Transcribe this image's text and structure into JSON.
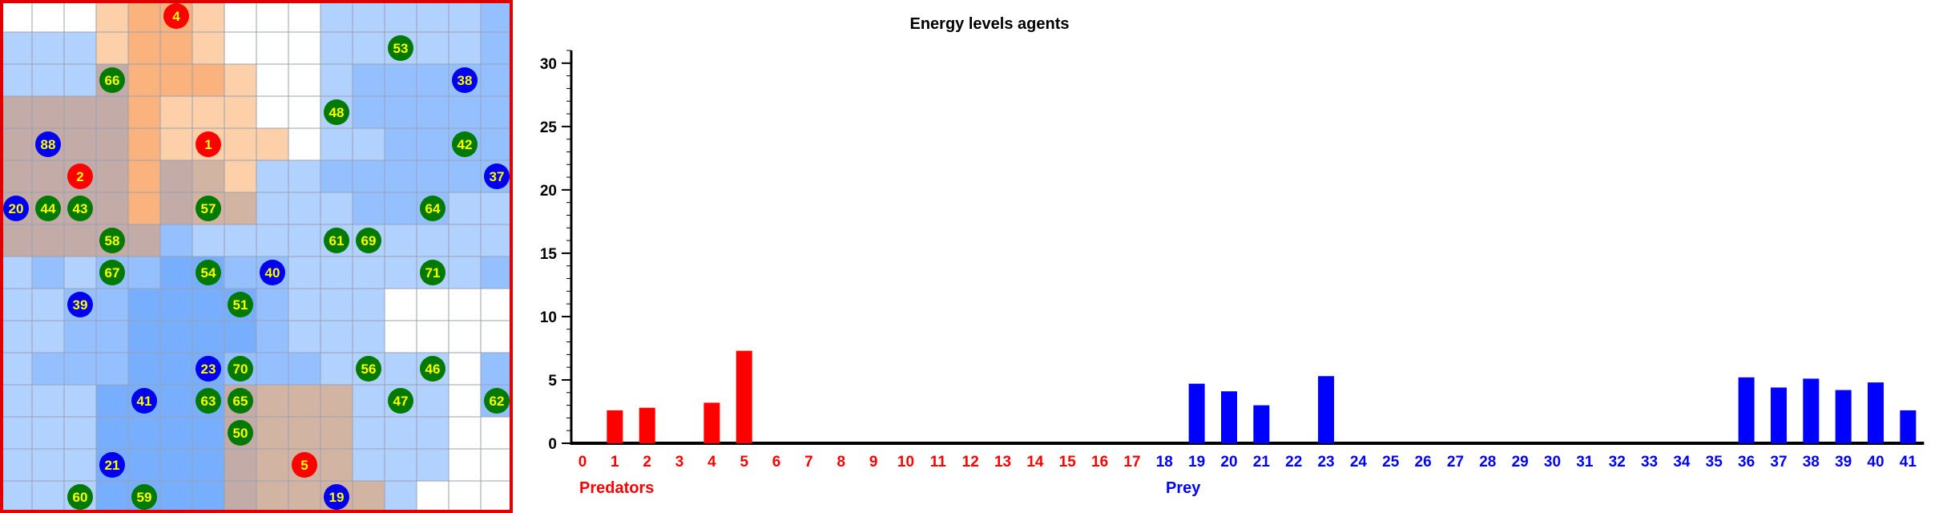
{
  "grid": {
    "rows": 16,
    "cols": 16,
    "border_color": "#e00000",
    "cell_colors": {
      "w": "#ffffff",
      "o": "#fdd0aa",
      "O": "#fbb37d",
      "b": "#b1d2ff",
      "B": "#94c0ff",
      "D": "#78aefe",
      "x": "#c3aba7",
      "p": "#d2b4a2",
      "v": "#cbb7c3"
    },
    "cell_map": [
      "wwwoOOowwwbbbbbB",
      "bbboOOowwwbbbbbB",
      "bbbxOOOowwbBBBBB",
      "xxxxOooowwbBBBBB",
      "xxxxOoooowbbBBBB",
      "xxxxOxpobbBBBBBB",
      "xxxxOxppbbbBBBbb",
      "xxxxxBbbbbbbbbbb",
      "bBbBBDDBBbbbbbbB",
      "bbBBDDDDBbbbwwww",
      "bbBBDDDDBbbbwwww",
      "bBBBDDDBBBbbbbwB",
      "bbbDDDDxpppbbbwB",
      "bbbDDDDxpppbbbww",
      "bbbDDDDxpppbbbww",
      "bbbDDDDxppppbwww"
    ],
    "agents": [
      {
        "id": "4",
        "kind": "predator",
        "row": 0,
        "col": 5
      },
      {
        "id": "53",
        "kind": "plant",
        "row": 1,
        "col": 12
      },
      {
        "id": "66",
        "kind": "plant",
        "row": 2,
        "col": 3
      },
      {
        "id": "38",
        "kind": "prey",
        "row": 2,
        "col": 14
      },
      {
        "id": "48",
        "kind": "plant",
        "row": 3,
        "col": 10
      },
      {
        "id": "88",
        "kind": "prey",
        "row": 4,
        "col": 1
      },
      {
        "id": "1",
        "kind": "predator",
        "row": 4,
        "col": 6
      },
      {
        "id": "42",
        "kind": "plant",
        "row": 4,
        "col": 14
      },
      {
        "id": "2",
        "kind": "predator",
        "row": 5,
        "col": 2
      },
      {
        "id": "37",
        "kind": "prey",
        "row": 5,
        "col": 15
      },
      {
        "id": "20",
        "kind": "prey",
        "row": 6,
        "col": 0
      },
      {
        "id": "44",
        "kind": "plant",
        "row": 6,
        "col": 1
      },
      {
        "id": "43",
        "kind": "plant",
        "row": 6,
        "col": 2
      },
      {
        "id": "57",
        "kind": "plant",
        "row": 6,
        "col": 6
      },
      {
        "id": "64",
        "kind": "plant",
        "row": 6,
        "col": 13
      },
      {
        "id": "58",
        "kind": "plant",
        "row": 7,
        "col": 3
      },
      {
        "id": "61",
        "kind": "plant",
        "row": 7,
        "col": 10
      },
      {
        "id": "69",
        "kind": "plant",
        "row": 7,
        "col": 11
      },
      {
        "id": "67",
        "kind": "plant",
        "row": 8,
        "col": 3
      },
      {
        "id": "54",
        "kind": "plant",
        "row": 8,
        "col": 6
      },
      {
        "id": "40",
        "kind": "prey",
        "row": 8,
        "col": 8
      },
      {
        "id": "71",
        "kind": "plant",
        "row": 8,
        "col": 13
      },
      {
        "id": "39",
        "kind": "prey",
        "row": 9,
        "col": 2
      },
      {
        "id": "51",
        "kind": "plant",
        "row": 9,
        "col": 7
      },
      {
        "id": "23",
        "kind": "prey",
        "row": 11,
        "col": 6
      },
      {
        "id": "70",
        "kind": "plant",
        "row": 11,
        "col": 7
      },
      {
        "id": "56",
        "kind": "plant",
        "row": 11,
        "col": 11
      },
      {
        "id": "46",
        "kind": "plant",
        "row": 11,
        "col": 13
      },
      {
        "id": "41",
        "kind": "prey",
        "row": 12,
        "col": 4
      },
      {
        "id": "63",
        "kind": "plant",
        "row": 12,
        "col": 6
      },
      {
        "id": "65",
        "kind": "plant",
        "row": 12,
        "col": 7
      },
      {
        "id": "47",
        "kind": "plant",
        "row": 12,
        "col": 12
      },
      {
        "id": "62",
        "kind": "plant",
        "row": 12,
        "col": 15
      },
      {
        "id": "50",
        "kind": "plant",
        "row": 13,
        "col": 7
      },
      {
        "id": "21",
        "kind": "prey",
        "row": 14,
        "col": 3
      },
      {
        "id": "5",
        "kind": "predator",
        "row": 14,
        "col": 9
      },
      {
        "id": "60",
        "kind": "plant",
        "row": 15,
        "col": 2
      },
      {
        "id": "59",
        "kind": "plant",
        "row": 15,
        "col": 4
      },
      {
        "id": "19",
        "kind": "prey",
        "row": 15,
        "col": 10
      }
    ],
    "agent_colors": {
      "predator": {
        "fill": "#ff0000",
        "text": "#ffff00"
      },
      "prey": {
        "fill": "#0000ee",
        "text": "#ffff00"
      },
      "plant": {
        "fill": "#007a00",
        "text": "#ffff00"
      }
    }
  },
  "chart_data": {
    "type": "bar",
    "title": "Energy levels agents",
    "ylim": [
      0,
      31
    ],
    "yticks": [
      0,
      5,
      10,
      15,
      20,
      25,
      30
    ],
    "categories": [
      "0",
      "1",
      "2",
      "3",
      "4",
      "5",
      "6",
      "7",
      "8",
      "9",
      "10",
      "11",
      "12",
      "13",
      "14",
      "15",
      "16",
      "17",
      "18",
      "19",
      "20",
      "21",
      "22",
      "23",
      "24",
      "25",
      "26",
      "27",
      "28",
      "29",
      "30",
      "31",
      "32",
      "33",
      "34",
      "35",
      "36",
      "37",
      "38",
      "39",
      "40",
      "41"
    ],
    "values": [
      0,
      2.6,
      2.8,
      0,
      3.2,
      7.3,
      0,
      0,
      0,
      0,
      0,
      0,
      0,
      0,
      0,
      0,
      0,
      0,
      0,
      4.7,
      4.1,
      3.0,
      0,
      5.3,
      0,
      0,
      0,
      0,
      0,
      0,
      0,
      0,
      0,
      0,
      0,
      0,
      5.2,
      4.4,
      5.1,
      4.2,
      4.8,
      2.6
    ],
    "predator_count": 18,
    "groups": {
      "predators": "Predators",
      "prey": "Prey"
    },
    "colors": {
      "predators": "#ff0000",
      "prey": "#0000ff",
      "axis": "#000000"
    }
  }
}
